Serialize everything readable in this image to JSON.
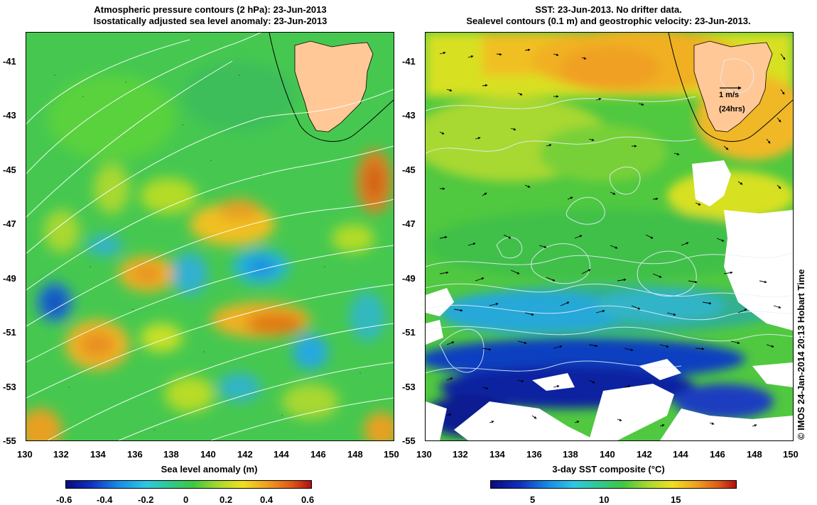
{
  "left_panel": {
    "title_line1": "Atmospheric pressure contours (2 hPa): 23-Jun-2013",
    "title_line2": "Isostatically adjusted sea level anomaly: 23-Jun-2013",
    "xlabel": "Sea level anomaly (m)",
    "colorbar_ticks": [
      "-0.6",
      "-0.4",
      "-0.2",
      "0",
      "0.2",
      "0.4",
      "0.6"
    ]
  },
  "right_panel": {
    "title_line1": "SST: 23-Jun-2013. No drifter data.",
    "title_line2": "Sealevel contours (0.1 m) and geostrophic velocity: 23-Jun-2013.",
    "xlabel": "3-day SST composite (°C)",
    "colorbar_ticks": [
      "5",
      "10",
      "15"
    ],
    "vector_scale": "1 m/s",
    "vector_scale_note": "(24hrs)"
  },
  "axes": {
    "lat_ticks": [
      "-41",
      "-43",
      "-45",
      "-47",
      "-49",
      "-51",
      "-53",
      "-55"
    ],
    "lon_ticks": [
      "130",
      "132",
      "134",
      "136",
      "138",
      "140",
      "142",
      "144",
      "146",
      "148",
      "150"
    ]
  },
  "credit": "© IMOS 24-Jan-2014 20:13 Hobart Time",
  "colors": {
    "land": "#ffc896",
    "sla_low": "#1a5fc8",
    "sla_mid": "#3cc84a",
    "sla_high": "#e07010",
    "sst_cold": "#0a1f9a",
    "sst_warm": "#f0a020"
  }
}
